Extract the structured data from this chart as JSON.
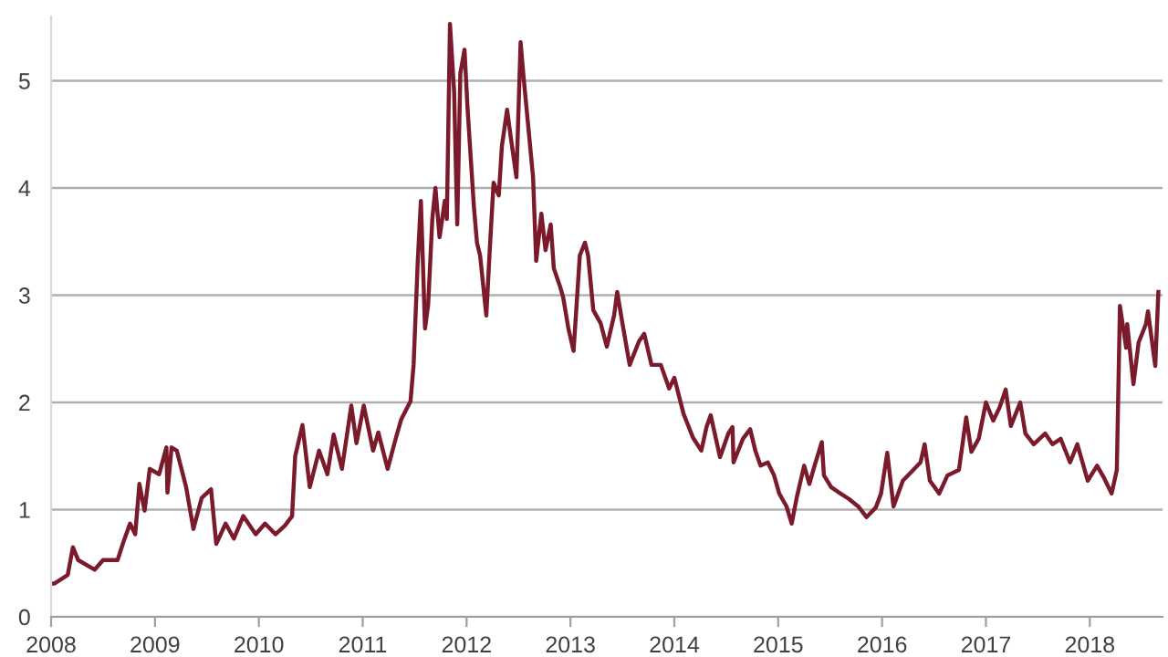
{
  "chart_data": {
    "type": "line",
    "x": [
      2008.0,
      2008.03,
      2008.16,
      2008.21,
      2008.26,
      2008.42,
      2008.5,
      2008.64,
      2008.69,
      2008.76,
      2008.81,
      2008.85,
      2008.9,
      2008.95,
      2009.04,
      2009.11,
      2009.12,
      2009.16,
      2009.21,
      2009.3,
      2009.37,
      2009.45,
      2009.54,
      2009.59,
      2009.68,
      2009.76,
      2009.85,
      2009.97,
      2010.06,
      2010.16,
      2010.25,
      2010.32,
      2010.35,
      2010.42,
      2010.49,
      2010.58,
      2010.66,
      2010.72,
      2010.8,
      2010.89,
      2010.94,
      2011.01,
      2011.1,
      2011.15,
      2011.24,
      2011.32,
      2011.37,
      2011.46,
      2011.49,
      2011.53,
      2011.56,
      2011.6,
      2011.63,
      2011.67,
      2011.7,
      2011.74,
      2011.79,
      2011.81,
      2011.84,
      2011.88,
      2011.91,
      2011.94,
      2011.98,
      2012.01,
      2012.07,
      2012.1,
      2012.13,
      2012.19,
      2012.22,
      2012.26,
      2012.31,
      2012.34,
      2012.39,
      2012.43,
      2012.48,
      2012.52,
      2012.55,
      2012.6,
      2012.64,
      2012.67,
      2012.72,
      2012.76,
      2012.81,
      2012.84,
      2012.9,
      2012.93,
      2012.98,
      2013.03,
      2013.09,
      2013.14,
      2013.17,
      2013.22,
      2013.29,
      2013.35,
      2013.42,
      2013.45,
      2013.5,
      2013.57,
      2013.66,
      2013.71,
      2013.78,
      2013.87,
      2013.95,
      2014.0,
      2014.09,
      2014.18,
      2014.26,
      2014.31,
      2014.35,
      2014.44,
      2014.52,
      2014.56,
      2014.57,
      2014.66,
      2014.73,
      2014.78,
      2014.83,
      2014.9,
      2014.96,
      2015.01,
      2015.08,
      2015.13,
      2015.18,
      2015.25,
      2015.3,
      2015.35,
      2015.42,
      2015.44,
      2015.51,
      2015.6,
      2015.68,
      2015.77,
      2015.85,
      2015.94,
      2015.99,
      2016.05,
      2016.11,
      2016.2,
      2016.29,
      2016.37,
      2016.41,
      2016.46,
      2016.55,
      2016.63,
      2016.74,
      2016.81,
      2016.86,
      2016.93,
      2017.0,
      2017.07,
      2017.13,
      2017.19,
      2017.24,
      2017.33,
      2017.38,
      2017.46,
      2017.57,
      2017.64,
      2017.72,
      2017.81,
      2017.88,
      2017.98,
      2018.07,
      2018.14,
      2018.21,
      2018.26,
      2018.29,
      2018.35,
      2018.36,
      2018.42,
      2018.47,
      2018.54,
      2018.56,
      2018.63,
      2018.66
    ],
    "series": [
      {
        "color": "#7a1a2a",
        "values": [
          0.31,
          0.31,
          0.39,
          0.65,
          0.53,
          0.44,
          0.53,
          0.53,
          0.68,
          0.87,
          0.77,
          1.24,
          0.99,
          1.38,
          1.33,
          1.58,
          1.16,
          1.58,
          1.55,
          1.21,
          0.82,
          1.11,
          1.19,
          0.68,
          0.87,
          0.73,
          0.94,
          0.77,
          0.87,
          0.77,
          0.85,
          0.94,
          1.5,
          1.79,
          1.21,
          1.55,
          1.33,
          1.7,
          1.38,
          1.97,
          1.62,
          1.97,
          1.55,
          1.72,
          1.38,
          1.67,
          1.84,
          2.01,
          2.35,
          3.32,
          3.88,
          2.69,
          2.91,
          3.71,
          4.0,
          3.54,
          3.88,
          3.71,
          5.53,
          4.9,
          3.66,
          5.07,
          5.29,
          4.73,
          3.83,
          3.49,
          3.37,
          2.81,
          3.37,
          4.05,
          3.93,
          4.39,
          4.73,
          4.44,
          4.1,
          5.36,
          5.02,
          4.51,
          4.1,
          3.32,
          3.76,
          3.42,
          3.66,
          3.25,
          3.08,
          2.98,
          2.69,
          2.48,
          3.37,
          3.49,
          3.37,
          2.86,
          2.74,
          2.52,
          2.81,
          3.03,
          2.74,
          2.35,
          2.57,
          2.64,
          2.35,
          2.35,
          2.13,
          2.23,
          1.89,
          1.67,
          1.55,
          1.77,
          1.88,
          1.49,
          1.71,
          1.77,
          1.44,
          1.66,
          1.75,
          1.55,
          1.41,
          1.44,
          1.32,
          1.15,
          1.03,
          0.87,
          1.12,
          1.41,
          1.24,
          1.41,
          1.63,
          1.32,
          1.21,
          1.15,
          1.1,
          1.03,
          0.93,
          1.02,
          1.15,
          1.53,
          1.03,
          1.27,
          1.36,
          1.44,
          1.61,
          1.27,
          1.15,
          1.32,
          1.37,
          1.86,
          1.54,
          1.66,
          2.0,
          1.83,
          1.95,
          2.12,
          1.78,
          2.0,
          1.71,
          1.61,
          1.71,
          1.61,
          1.66,
          1.44,
          1.61,
          1.27,
          1.41,
          1.29,
          1.15,
          1.37,
          2.9,
          2.51,
          2.73,
          2.17,
          2.56,
          2.73,
          2.85,
          2.34,
          3.03
        ]
      }
    ],
    "xlim": [
      2008,
      2018.7
    ],
    "ylim": [
      0,
      5.6
    ],
    "xticks": [
      2008,
      2009,
      2010,
      2011,
      2012,
      2013,
      2014,
      2015,
      2016,
      2017,
      2018
    ],
    "yticks": [
      0,
      1,
      2,
      3,
      4,
      5
    ],
    "grid": "y",
    "legend": false,
    "marker": "none",
    "line_style": "solid"
  }
}
